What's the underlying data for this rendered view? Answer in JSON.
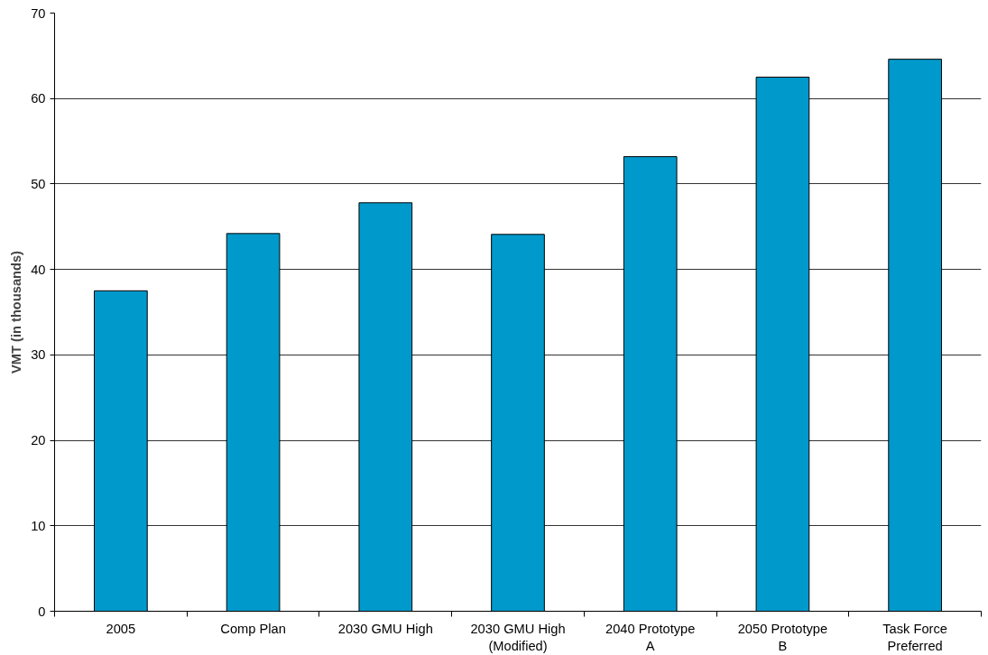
{
  "chart_data": {
    "type": "bar",
    "ylabel": "VMT (in thousands)",
    "categories": [
      "2005",
      "Comp Plan",
      "2030 GMU High",
      "2030 GMU High (Modified)",
      "2040 Prototype A",
      "2050 Prototype B",
      "Task Force Preferred"
    ],
    "values": [
      37.5,
      44.2,
      47.8,
      44.1,
      53.2,
      62.5,
      64.6
    ],
    "color": "#0099cc",
    "ylim": [
      0,
      70
    ],
    "yticks": [
      0,
      10,
      20,
      30,
      40,
      50,
      60,
      70
    ],
    "grid": "y"
  }
}
